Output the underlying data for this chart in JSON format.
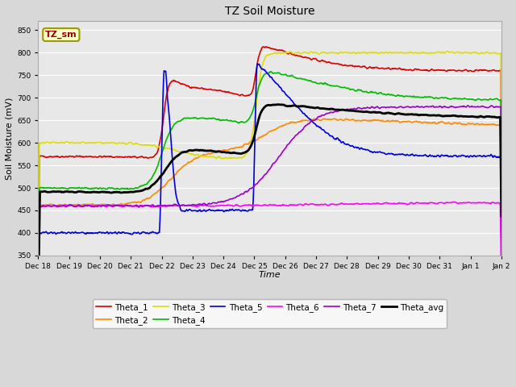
{
  "title": "TZ Soil Moisture",
  "xlabel": "Time",
  "ylabel": "Soil Moisture (mV)",
  "ylim": [
    350,
    870
  ],
  "yticks": [
    350,
    400,
    450,
    500,
    550,
    600,
    650,
    700,
    750,
    800,
    850
  ],
  "bg_color": "#e8e8e8",
  "legend_label": "TZ_sm",
  "series_colors": {
    "Theta_1": "#dd0000",
    "Theta_2": "#ff8800",
    "Theta_3": "#dddd00",
    "Theta_4": "#00bb00",
    "Theta_5": "#0000dd",
    "Theta_6": "#ff00ff",
    "Theta_7": "#9900cc",
    "Theta_avg": "#000000"
  },
  "tick_labels": [
    "Dec 18",
    "Dec 19",
    "Dec 20",
    "Dec 21",
    "Dec 22",
    "Dec 23",
    "Dec 24",
    "Dec 25",
    "Dec 26",
    "Dec 27",
    "Dec 28",
    "Dec 29",
    "Dec 30",
    "Dec 31",
    "Jan 1",
    "Jan 2"
  ],
  "figsize": [
    6.4,
    4.8
  ],
  "dpi": 100
}
